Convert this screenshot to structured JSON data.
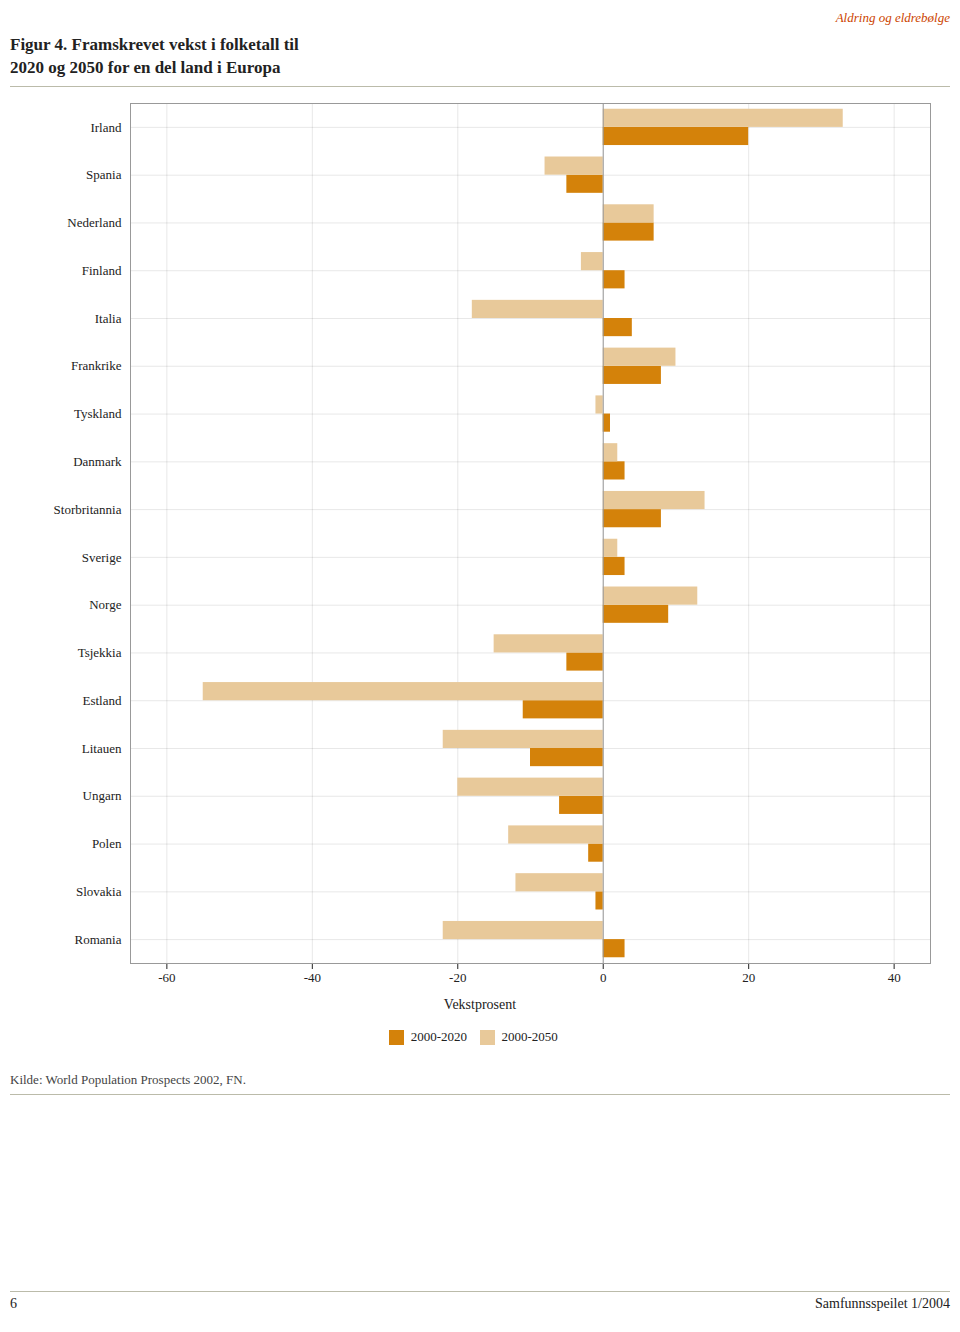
{
  "chart_data": {
    "type": "bar",
    "orientation": "horizontal",
    "title": "Figur 4.  Framskrevet vekst i folketall til\n2020 og 2050 for en del land i Europa",
    "xlabel": "Vekstprosent",
    "categories": [
      "Irland",
      "Spania",
      "Nederland",
      "Finland",
      "Italia",
      "Frankrike",
      "Tyskland",
      "Danmark",
      "Storbritannia",
      "Sverige",
      "Norge",
      "Tsjekkia",
      "Estland",
      "Litauen",
      "Ungarn",
      "Polen",
      "Slovakia",
      "Romania"
    ],
    "series": [
      {
        "name": "2000-2020",
        "color": "#D4820A",
        "values": [
          20,
          -5,
          7,
          3,
          4,
          8,
          1,
          3,
          8,
          3,
          9,
          -5,
          -11,
          -10,
          -6,
          -2,
          -1,
          3
        ]
      },
      {
        "name": "2000-2050",
        "color": "#E8C99A",
        "values": [
          33,
          -8,
          7,
          -3,
          -18,
          10,
          -1,
          2,
          14,
          2,
          13,
          -15,
          -55,
          -22,
          -20,
          -13,
          -12,
          -22
        ]
      }
    ],
    "xlim": [
      -65,
      45
    ],
    "xticks": [
      -60,
      -40,
      -20,
      0,
      20,
      40
    ],
    "grid": true,
    "legend": "bottom",
    "annotations": [
      "Kilde: World Population Prospects 2002, FN.",
      "Aldring og eldrebølge",
      "6",
      "Samfunnsspeilet 1/2004"
    ]
  }
}
